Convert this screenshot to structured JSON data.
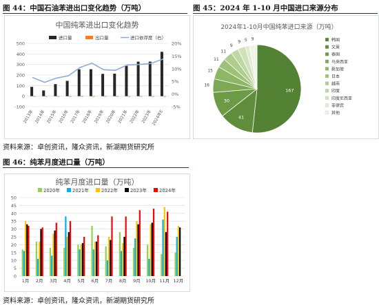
{
  "fig44": {
    "label": "图 44：中国石油苯进出口变化趋势（万吨）",
    "chart_data": {
      "type": "bar",
      "title": "中国纯苯进出口变化趋势",
      "categories": [
        "2013年",
        "2014年",
        "2015年",
        "2016年",
        "2017年",
        "2018年",
        "2019年",
        "2020年",
        "2021年",
        "2022年",
        "2023年",
        "2024年E"
      ],
      "series": [
        {
          "name": "进口量",
          "type": "bar",
          "axis": "left",
          "color": "#262626",
          "values": [
            88,
            54,
            114,
            145,
            254,
            255,
            211,
            213,
            287,
            327,
            327,
            420
          ]
        },
        {
          "name": "出口量",
          "type": "bar",
          "axis": "left",
          "color": "#ed7d31",
          "values": [
            -3,
            -3,
            -3,
            -2,
            -2,
            -2,
            -2,
            -2,
            -2,
            -2,
            -2,
            -2
          ]
        },
        {
          "name": "进口依存度（右）",
          "type": "line",
          "axis": "right",
          "color": "#8faadc",
          "values": [
            6.5,
            4.6,
            6.3,
            7.2,
            10.5,
            12.2,
            9.6,
            9.4,
            11.5,
            11.7,
            12.1,
            13.8
          ]
        }
      ],
      "legend": [
        "进口量",
        "出口量",
        "进口依存度（右）"
      ],
      "ylim": [
        -100,
        500
      ],
      "yticks": [
        -100,
        0,
        100,
        200,
        300,
        400,
        500
      ],
      "ylim_right": [
        -5,
        20
      ],
      "yticks_right": [
        "-5%",
        "0%",
        "5%",
        "10%",
        "15%",
        "20%"
      ]
    }
  },
  "fig45": {
    "label": "图 45：2024 年 1-10 月中国进口来源分布",
    "chart_data": {
      "type": "pie",
      "title": "2024年1-10月中国纯苯进口来源（万吨）",
      "labels": [
        "韩国",
        "文莱",
        "泰国",
        "马来西亚",
        "新加坡",
        "日本",
        "越南",
        "印度",
        "印度尼西亚",
        "菲律宾",
        "其他"
      ],
      "values": [
        167,
        41,
        30,
        16,
        15,
        11,
        11,
        9,
        9,
        5,
        9
      ],
      "colors": [
        "#548235",
        "#5f8d3c",
        "#6c9a47",
        "#7da955",
        "#8db666",
        "#9dc179",
        "#aecd8e",
        "#bfd8a3",
        "#cfe2b9",
        "#dfecd0",
        "#eef5e7"
      ]
    }
  },
  "source1": "资料来源：卓创资讯，隆众资讯，新湖期货研究所",
  "fig46": {
    "label": "图 46：纯苯月度进口量（万吨）",
    "chart_data": {
      "type": "bar",
      "title": "纯苯月度进口量（万吨）",
      "categories": [
        "1月",
        "2月",
        "3月",
        "4月",
        "5月",
        "6月",
        "7月",
        "8月",
        "9月",
        "10月",
        "11月",
        "12月"
      ],
      "series": [
        {
          "name": "2020年",
          "color": "#92d050",
          "values": [
            17,
            22,
            18,
            18,
            20,
            32,
            19,
            28,
            18,
            20,
            14,
            15
          ]
        },
        {
          "name": "2021年",
          "color": "#00b0f0",
          "values": [
            16,
            11,
            13,
            38,
            17,
            17,
            10,
            16,
            24,
            11,
            36,
            25
          ]
        },
        {
          "name": "2022年",
          "color": "#ffc000",
          "values": [
            35,
            22,
            27,
            25,
            20,
            22,
            25,
            21,
            35,
            33,
            44,
            32
          ]
        },
        {
          "name": "2023年",
          "color": "#000000",
          "values": [
            33,
            30,
            29,
            28,
            21,
            22,
            23,
            25,
            33,
            34,
            28,
            31
          ]
        },
        {
          "name": "2024年",
          "color": "#ff0000",
          "values": [
            32,
            31,
            34,
            35,
            25,
            26,
            38,
            38,
            42,
            43,
            41,
            0
          ]
        }
      ],
      "ylim": [
        0,
        50
      ],
      "yticks": [
        0,
        5,
        10,
        15,
        20,
        25,
        30,
        35,
        40,
        45,
        50
      ]
    }
  },
  "source2": "资料来源：卓创资讯，隆众资讯，新湖期货研究所"
}
